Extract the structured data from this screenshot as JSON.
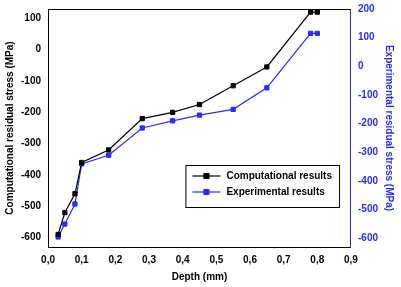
{
  "chart_data": {
    "type": "line",
    "x_label": "Depth (mm)",
    "y_label": "Computational residual stress (MPa)",
    "y2_label": "Experimental residual stress (MPa)",
    "x": [
      0.03,
      0.05,
      0.08,
      0.1,
      0.18,
      0.28,
      0.37,
      0.45,
      0.55,
      0.65,
      0.78,
      0.8
    ],
    "series": [
      {
        "name": "Computational results",
        "color": "#000000",
        "marker": "square",
        "line_style": "solid",
        "values": [
          -590,
          -520,
          -460,
          -360,
          -320,
          -220,
          -200,
          -175,
          -115,
          -55,
          120,
          120
        ]
      },
      {
        "name": "Experimental results",
        "color": "#2a2aff",
        "marker": "square",
        "line_style": "solid",
        "axis": "y2",
        "values": [
          -595,
          -550,
          -480,
          -340,
          -310,
          -215,
          -190,
          -170,
          -150,
          -75,
          115,
          115
        ]
      }
    ],
    "xlim": [
      0,
      0.9
    ],
    "xticks": [
      {
        "value": 0,
        "label": "0,0"
      },
      {
        "value": 0.1,
        "label": "0,1"
      },
      {
        "value": 0.2,
        "label": "0,2"
      },
      {
        "value": 0.3,
        "label": "0,3"
      },
      {
        "value": 0.4,
        "label": "0,4"
      },
      {
        "value": 0.5,
        "label": "0,5"
      },
      {
        "value": 0.6,
        "label": "0,6"
      },
      {
        "value": 0.7,
        "label": "0,7"
      },
      {
        "value": 0.8,
        "label": "0,8"
      },
      {
        "value": 0.9,
        "label": "0,9"
      }
    ],
    "ylim": [
      -630,
      130
    ],
    "yticks": [
      -600,
      -500,
      -400,
      -300,
      -200,
      -100,
      0,
      100
    ],
    "y2lim": [
      -630,
      200
    ],
    "y2ticks": [
      -600,
      -500,
      -400,
      -300,
      -200,
      -100,
      0,
      100,
      200
    ],
    "grid": false,
    "legend": "lower right"
  }
}
